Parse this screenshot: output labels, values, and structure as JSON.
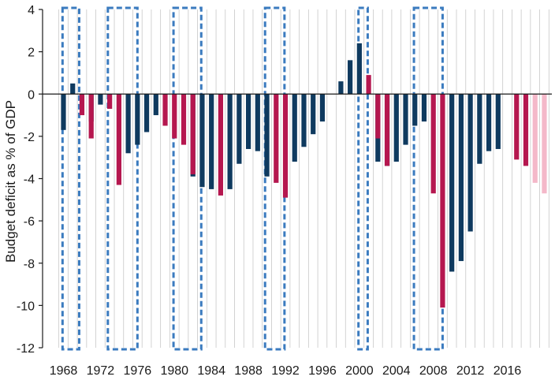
{
  "chart_data": {
    "type": "bar",
    "title": "",
    "xlabel": "",
    "ylabel": "Budget deficit as % of GDP",
    "ylim": [
      -12,
      4
    ],
    "yticks": [
      4,
      2,
      0,
      -2,
      -4,
      -6,
      -8,
      -10,
      -12
    ],
    "ytick_labels": [
      "4",
      "2",
      "0",
      "-2",
      "-4",
      "-6",
      "-8",
      "-10",
      "-12"
    ],
    "x_range": [
      1968,
      2020
    ],
    "xticks": [
      1968,
      1972,
      1976,
      1980,
      1984,
      1988,
      1992,
      1996,
      2000,
      2004,
      2008,
      2012,
      2016
    ],
    "xtick_labels": [
      "1968",
      "1972",
      "1976",
      "1980",
      "1984",
      "1988",
      "1992",
      "1996",
      "2000",
      "2004",
      "2008",
      "2012",
      "2016"
    ],
    "grid": "vertical lines",
    "legend": "none",
    "colors": {
      "navy": "#0f3a5f",
      "crimson": "#b5174f",
      "pink": "#f4b8c9",
      "box": "#3b7bbf",
      "grid": "#c8c8c8"
    },
    "series": [
      {
        "color": "navy",
        "x": [
          1968,
          1969,
          1971,
          1972,
          1975,
          1976,
          1977,
          1978,
          1982,
          1983,
          1984,
          1986,
          1987,
          1988,
          1989,
          1990,
          1993,
          1994,
          1995,
          1996,
          1997,
          1998,
          1999,
          2000,
          2002,
          2003,
          2004,
          2005,
          2006,
          2007,
          2010,
          2011,
          2012,
          2013,
          2014,
          2015
        ],
        "values": [
          -1.7,
          0.5,
          -1.3,
          -0.5,
          -2.8,
          -2.4,
          -1.8,
          -1.0,
          -3.9,
          -4.4,
          -4.5,
          -4.5,
          -3.3,
          -2.6,
          -2.7,
          -3.9,
          -3.2,
          -2.5,
          -1.9,
          -1.3,
          0.0,
          0.6,
          1.6,
          2.4,
          -3.2,
          -3.4,
          -3.2,
          -2.4,
          -1.5,
          -1.3,
          -8.4,
          -7.9,
          -6.5,
          -3.3,
          -2.7,
          -2.6
        ]
      },
      {
        "color": "crimson",
        "x": [
          1970,
          1971,
          1973,
          1974,
          1979,
          1980,
          1981,
          1982,
          1985,
          1991,
          1992,
          2001,
          2002,
          2003,
          2008,
          2009,
          2017,
          2018
        ],
        "values": [
          -1.0,
          -2.1,
          -0.7,
          -4.3,
          -1.5,
          -2.1,
          -2.4,
          -3.8,
          -4.8,
          -4.2,
          -4.9,
          0.9,
          -2.1,
          -3.4,
          -4.7,
          -10.1,
          -3.1,
          -3.4
        ]
      },
      {
        "color": "pink",
        "x": [
          2019,
          2020
        ],
        "values": [
          -4.2,
          -4.7
        ]
      }
    ],
    "highlight_boxes": [
      [
        1968.4,
        1970.2
      ],
      [
        1973.3,
        1976.5
      ],
      [
        1980.4,
        1983.4
      ],
      [
        1990.3,
        1992.4
      ],
      [
        2000.4,
        2001.4
      ],
      [
        2006.4,
        2009.5
      ]
    ]
  }
}
